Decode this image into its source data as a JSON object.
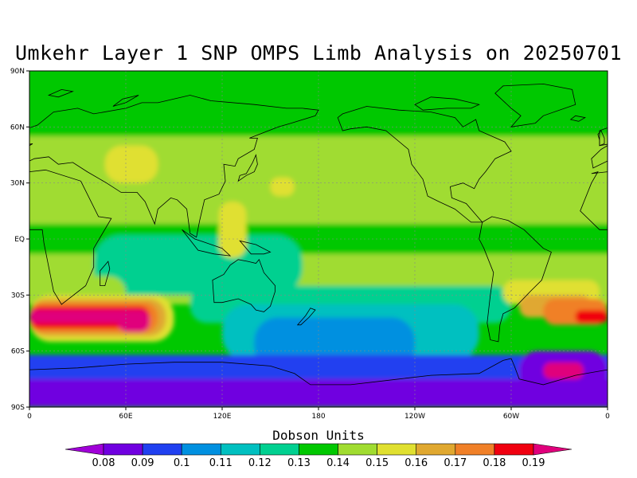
{
  "title": "Umkehr Layer 1 SNP OMPS Limb Analysis on 20250701",
  "colorbar": {
    "title": "Dobson Units",
    "labels": [
      "0.08",
      "0.09",
      "0.1",
      "0.11",
      "0.12",
      "0.13",
      "0.14",
      "0.15",
      "0.16",
      "0.17",
      "0.18",
      "0.19"
    ],
    "colors": [
      "#a000d8",
      "#7000e0",
      "#2040f0",
      "#0090e0",
      "#00c0c0",
      "#00d090",
      "#00c800",
      "#a0dc30",
      "#e0e030",
      "#e0a830",
      "#f08028",
      "#f00010",
      "#e0007c"
    ]
  },
  "axes": {
    "x_ticks": [
      "0",
      "60E",
      "120E",
      "180",
      "120W",
      "60W",
      "0"
    ],
    "y_ticks": [
      "90N",
      "60N",
      "30N",
      "EQ",
      "30S",
      "60S",
      "90S"
    ]
  },
  "map": {
    "lon_range": [
      0,
      360
    ],
    "lat_range": [
      -90,
      90
    ],
    "background_value": 0.13,
    "regions": [
      {
        "name": "arctic-band",
        "value": 0.13,
        "lon": [
          0,
          360
        ],
        "lat": [
          55,
          90
        ]
      },
      {
        "name": "nh-midlat",
        "value": 0.14,
        "lon": [
          0,
          360
        ],
        "lat": [
          8,
          55
        ]
      },
      {
        "name": "tropics-band",
        "value": 0.13,
        "lon": [
          0,
          360
        ],
        "lat": [
          -8,
          8
        ]
      },
      {
        "name": "sh-subtropics",
        "value": 0.14,
        "lon": [
          0,
          360
        ],
        "lat": [
          -35,
          -8
        ]
      },
      {
        "name": "indian-tropics",
        "value": 0.12,
        "lon": [
          40,
          170
        ],
        "lat": [
          -30,
          2
        ]
      },
      {
        "name": "pacific-sh",
        "value": 0.12,
        "lon": [
          100,
          300
        ],
        "lat": [
          -45,
          -25
        ]
      },
      {
        "name": "southern-ocean",
        "value": 0.11,
        "lon": [
          120,
          280
        ],
        "lat": [
          -65,
          -35
        ]
      },
      {
        "name": "southern-ocean-core",
        "value": 0.1,
        "lon": [
          140,
          240
        ],
        "lat": [
          -70,
          -42
        ]
      },
      {
        "name": "antarctic-ring",
        "value": 0.09,
        "lon": [
          0,
          360
        ],
        "lat": [
          -78,
          -62
        ]
      },
      {
        "name": "antarctic-core",
        "value": 0.08,
        "lon": [
          0,
          360
        ],
        "lat": [
          -90,
          -75
        ]
      },
      {
        "name": "siberia-blob",
        "value": 0.15,
        "lon": [
          47,
          80
        ],
        "lat": [
          30,
          50
        ]
      },
      {
        "name": "west-pacific",
        "value": 0.15,
        "lon": [
          118,
          135
        ],
        "lat": [
          -10,
          20
        ]
      },
      {
        "name": "pacific-blob",
        "value": 0.15,
        "lon": [
          150,
          165
        ],
        "lat": [
          23,
          33
        ]
      },
      {
        "name": "atlantic-sh-green",
        "value": 0.15,
        "lon": [
          295,
          355
        ],
        "lat": [
          -35,
          -22
        ]
      },
      {
        "name": "atlantic-sh-yellow",
        "value": 0.16,
        "lon": [
          305,
          350
        ],
        "lat": [
          -42,
          -30
        ]
      },
      {
        "name": "atlantic-sh-orange",
        "value": 0.17,
        "lon": [
          320,
          360
        ],
        "lat": [
          -46,
          -32
        ]
      },
      {
        "name": "atlantic-sh-red",
        "value": 0.18,
        "lon": [
          340,
          360
        ],
        "lat": [
          -45,
          -38
        ]
      },
      {
        "name": "weddell-high",
        "value": 0.08,
        "lon": [
          305,
          360
        ],
        "lat": [
          -82,
          -60
        ]
      },
      {
        "name": "weddell-high-core",
        "value": 0.19,
        "lon": [
          320,
          345
        ],
        "lat": [
          -75,
          -66
        ]
      },
      {
        "name": "africa-sh-green",
        "value": 0.14,
        "lon": [
          0,
          60
        ],
        "lat": [
          -40,
          -20
        ]
      },
      {
        "name": "africa-sh-yellow",
        "value": 0.15,
        "lon": [
          0,
          90
        ],
        "lat": [
          -55,
          -30
        ]
      },
      {
        "name": "africa-sh-yellow2",
        "value": 0.16,
        "lon": [
          0,
          85
        ],
        "lat": [
          -52,
          -32
        ]
      },
      {
        "name": "africa-sh-orange",
        "value": 0.17,
        "lon": [
          0,
          80
        ],
        "lat": [
          -50,
          -34
        ]
      },
      {
        "name": "africa-sh-orange2",
        "value": 0.18,
        "lon": [
          0,
          75
        ],
        "lat": [
          -48,
          -36
        ]
      },
      {
        "name": "africa-sh-red",
        "value": 0.19,
        "lon": [
          0,
          70
        ],
        "lat": [
          -45,
          -38
        ]
      },
      {
        "name": "indian-ocean-core",
        "value": 0.19,
        "lon": [
          55,
          75
        ],
        "lat": [
          -50,
          -38
        ]
      }
    ]
  }
}
